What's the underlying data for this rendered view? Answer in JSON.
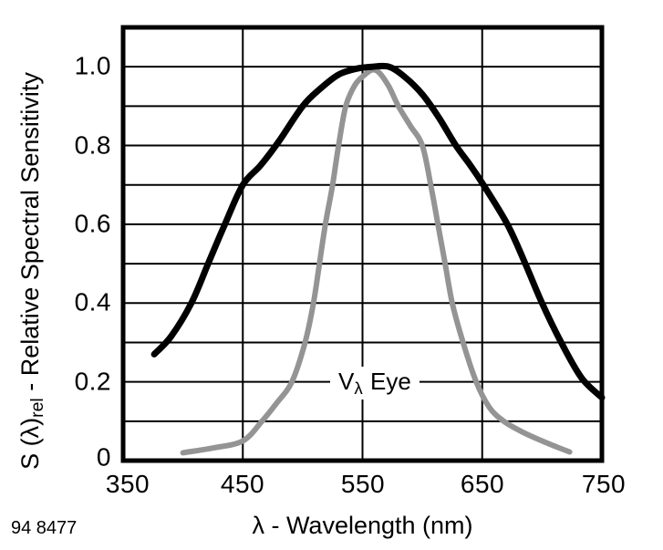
{
  "figure": {
    "note": "94 8477",
    "curve_label": {
      "v": "V",
      "sub": "λ",
      "rest": "Eye"
    }
  },
  "chart_data": {
    "type": "line",
    "title": "",
    "xlabel": "λ - Wavelength (nm)",
    "ylabel": {
      "prefix": "S (λ)",
      "sub": "rel",
      "suffix": " - Relative Spectral Sensitivity"
    },
    "xlim": [
      350,
      750
    ],
    "ylim": [
      0,
      1.1
    ],
    "grid": true,
    "frame_color": "#000000",
    "gridline_color": "#000000",
    "x_gridlines_nm": [
      450,
      550,
      650
    ],
    "y_gridline_step": 0.1,
    "x_ticks": [
      {
        "value": 350,
        "label": "350"
      },
      {
        "value": 450,
        "label": "450"
      },
      {
        "value": 550,
        "label": "550"
      },
      {
        "value": 650,
        "label": "650"
      },
      {
        "value": 750,
        "label": "750"
      }
    ],
    "y_ticks": [
      {
        "value": 1.0,
        "label": "1.0"
      },
      {
        "value": 0.8,
        "label": "0.8"
      },
      {
        "value": 0.6,
        "label": "0.6"
      },
      {
        "value": 0.4,
        "label": "0.4"
      },
      {
        "value": 0.2,
        "label": "0.2"
      },
      {
        "value": 0.0,
        "label": "0"
      }
    ],
    "series": [
      {
        "name": "photodetector-relative-spectral-sensitivity",
        "color": "#000000",
        "stroke_width": 7,
        "points": [
          [
            376,
            0.27
          ],
          [
            390,
            0.315
          ],
          [
            407,
            0.4
          ],
          [
            421,
            0.5
          ],
          [
            435,
            0.6
          ],
          [
            450,
            0.7
          ],
          [
            465,
            0.75
          ],
          [
            480,
            0.81
          ],
          [
            500,
            0.9
          ],
          [
            515,
            0.945
          ],
          [
            530,
            0.98
          ],
          [
            545,
            0.995
          ],
          [
            558,
            1.0
          ],
          [
            572,
            1.0
          ],
          [
            585,
            0.975
          ],
          [
            600,
            0.93
          ],
          [
            614,
            0.87
          ],
          [
            628,
            0.8
          ],
          [
            640,
            0.75
          ],
          [
            651,
            0.7
          ],
          [
            671,
            0.6
          ],
          [
            686,
            0.5
          ],
          [
            700,
            0.4
          ],
          [
            716,
            0.3
          ],
          [
            733,
            0.21
          ],
          [
            750,
            0.16
          ]
        ]
      },
      {
        "name": "v-lambda-human-eye-sensitivity",
        "label": "V λ Eye",
        "color": "#949494",
        "stroke_width": 6,
        "points": [
          [
            400,
            0.02
          ],
          [
            425,
            0.032
          ],
          [
            450,
            0.05
          ],
          [
            466,
            0.1
          ],
          [
            478,
            0.145
          ],
          [
            491,
            0.2
          ],
          [
            502,
            0.3
          ],
          [
            509,
            0.4
          ],
          [
            514,
            0.5
          ],
          [
            519,
            0.6
          ],
          [
            525,
            0.7
          ],
          [
            530,
            0.8
          ],
          [
            536,
            0.9
          ],
          [
            544,
            0.955
          ],
          [
            552,
            0.98
          ],
          [
            558,
            0.992
          ],
          [
            564,
            0.985
          ],
          [
            572,
            0.95
          ],
          [
            580,
            0.9
          ],
          [
            590,
            0.85
          ],
          [
            600,
            0.8
          ],
          [
            607,
            0.7
          ],
          [
            613,
            0.6
          ],
          [
            619,
            0.5
          ],
          [
            625,
            0.4
          ],
          [
            634,
            0.3
          ],
          [
            645,
            0.2
          ],
          [
            656,
            0.135
          ],
          [
            668,
            0.1
          ],
          [
            684,
            0.072
          ],
          [
            700,
            0.05
          ],
          [
            712,
            0.035
          ],
          [
            723,
            0.022
          ]
        ]
      }
    ]
  }
}
